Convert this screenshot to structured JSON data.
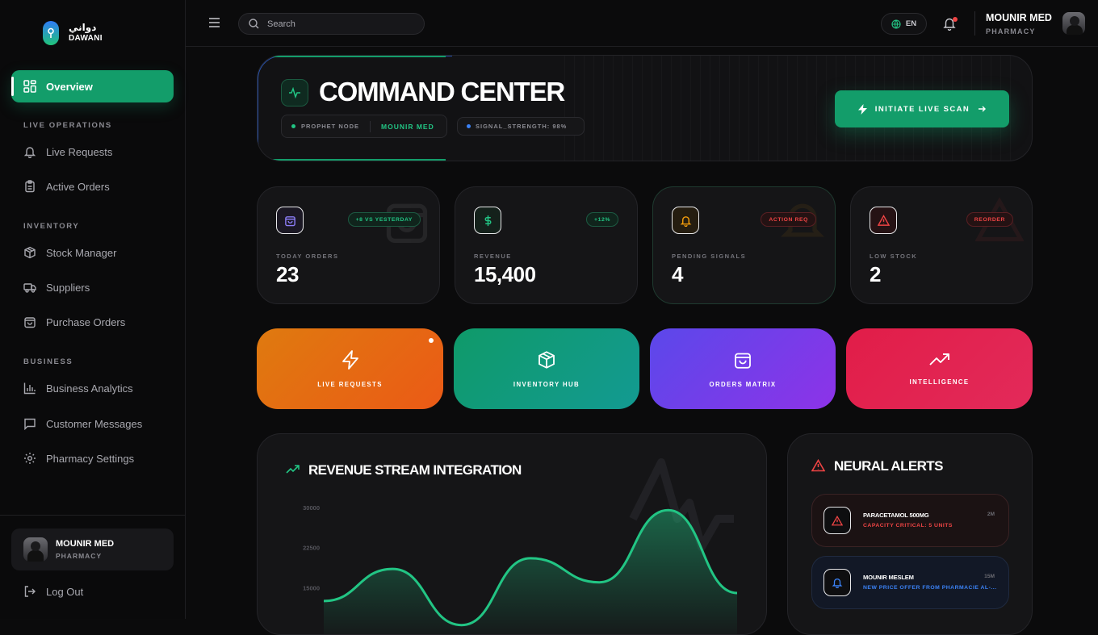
{
  "brand": {
    "name_ar": "دواني",
    "name_en": "DAWANI"
  },
  "sidebar": {
    "active": {
      "label": "Overview"
    },
    "sections": [
      {
        "title": "LIVE OPERATIONS",
        "items": [
          {
            "label": "Live Requests",
            "icon": "bell-icon"
          },
          {
            "label": "Active Orders",
            "icon": "clipboard-icon"
          }
        ]
      },
      {
        "title": "INVENTORY",
        "items": [
          {
            "label": "Stock Manager",
            "icon": "box-icon"
          },
          {
            "label": "Suppliers",
            "icon": "truck-icon"
          },
          {
            "label": "Purchase Orders",
            "icon": "bag-icon"
          }
        ]
      },
      {
        "title": "BUSINESS",
        "items": [
          {
            "label": "Business Analytics",
            "icon": "bar-chart-icon"
          },
          {
            "label": "Customer Messages",
            "icon": "message-icon"
          },
          {
            "label": "Pharmacy Settings",
            "icon": "gear-icon"
          }
        ]
      }
    ],
    "user": {
      "name": "MOUNIR MED",
      "role": "PHARMACY"
    },
    "logout": "Log Out"
  },
  "topbar": {
    "search_placeholder": "Search",
    "language": "EN",
    "user": {
      "name": "MOUNIR MED",
      "role": "PHARMACY"
    }
  },
  "hero": {
    "title": "COMMAND CENTER",
    "node_label": "PROPHET NODE",
    "node_value": "MOUNIR MED",
    "signal": "SIGNAL_STRENGTH: 98%",
    "scan_button": "INITIATE LIVE SCAN"
  },
  "stats": [
    {
      "label": "TODAY ORDERS",
      "value": "23",
      "badge": "+8 VS YESTERDAY",
      "color": "#8b7cf6",
      "badge_color": "#22c584"
    },
    {
      "label": "REVENUE",
      "value": "15,400",
      "badge": "+12%",
      "color": "#22c584",
      "badge_color": "#22c584"
    },
    {
      "label": "PENDING SIGNALS",
      "value": "4",
      "badge": "ACTION REQ",
      "color": "#f59e0b",
      "badge_color": "#ef4444"
    },
    {
      "label": "LOW STOCK",
      "value": "2",
      "badge": "REORDER",
      "color": "#ef4444",
      "badge_color": "#ef4444"
    }
  ],
  "tiles": [
    {
      "label": "LIVE REQUESTS",
      "icon": "lightning-icon"
    },
    {
      "label": "INVENTORY HUB",
      "icon": "box-icon"
    },
    {
      "label": "ORDERS MATRIX",
      "icon": "bag-icon"
    },
    {
      "label": "INTELLIGENCE",
      "icon": "trend-up-icon"
    }
  ],
  "revenue": {
    "title": "REVENUE STREAM INTEGRATION",
    "chart_data": {
      "type": "area",
      "title": "REVENUE STREAM INTEGRATION",
      "yticks": [
        30000,
        22500,
        15000
      ],
      "ylim": [
        7500,
        30000
      ],
      "values": [
        12500,
        18500,
        8000,
        20500,
        16000,
        29500,
        14000
      ],
      "color": "#22c584"
    }
  },
  "alerts": {
    "title": "NEURAL ALERTS",
    "items": [
      {
        "name": "PARACETAMOL 500MG",
        "sub": "CAPACITY CRITICAL: 5 UNITS",
        "time": "2M",
        "color": "#ef4444"
      },
      {
        "name": "MOUNIR MESLEM",
        "sub": "NEW PRICE OFFER FROM PHARMACIE AL-...",
        "time": "15M",
        "color": "#3b82f6"
      }
    ]
  }
}
